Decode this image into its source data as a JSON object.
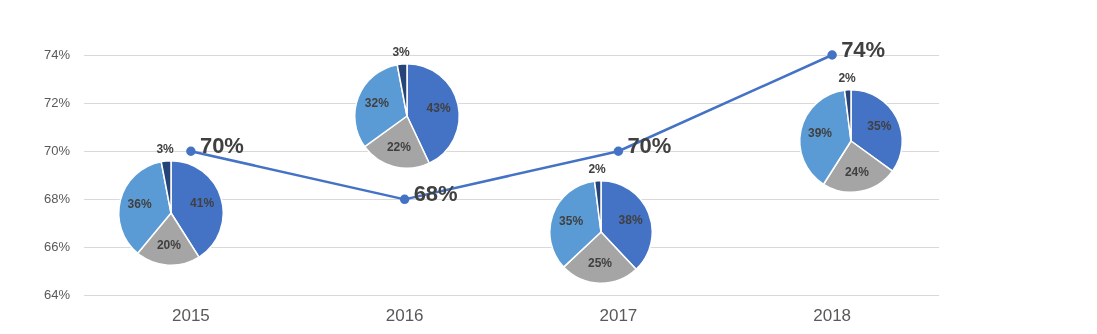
{
  "chart_data": [
    {
      "type": "line",
      "categories": [
        "2015",
        "2016",
        "2017",
        "2018"
      ],
      "values": [
        70,
        68,
        70,
        74
      ],
      "value_labels": [
        "70%",
        "68%",
        "70%",
        "74%"
      ],
      "color": "#4472c4",
      "marker": "circle",
      "ylim": [
        64,
        74
      ],
      "yticks": [
        {
          "value": 64,
          "label": "64%"
        },
        {
          "value": 66,
          "label": "66%"
        },
        {
          "value": 68,
          "label": "68%"
        },
        {
          "value": 70,
          "label": "70%"
        },
        {
          "value": 72,
          "label": "72%"
        },
        {
          "value": 74,
          "label": "74%"
        }
      ],
      "grid": "y",
      "legend": false
    },
    {
      "type": "pie",
      "categories": [
        null,
        null,
        null,
        null
      ],
      "values": [
        41,
        20,
        36,
        3
      ],
      "value_labels": [
        "41%",
        "20%",
        "36%",
        "3%"
      ],
      "colors": [
        "#4472c4",
        "#a5a5a5",
        "#5b9bd5",
        "#264478"
      ]
    },
    {
      "type": "pie",
      "categories": [
        null,
        null,
        null,
        null
      ],
      "values": [
        43,
        22,
        32,
        3
      ],
      "value_labels": [
        "43%",
        "22%",
        "32%",
        "3%"
      ],
      "colors": [
        "#4472c4",
        "#a5a5a5",
        "#5b9bd5",
        "#264478"
      ]
    },
    {
      "type": "pie",
      "categories": [
        null,
        null,
        null,
        null
      ],
      "values": [
        38,
        25,
        35,
        2
      ],
      "value_labels": [
        "38%",
        "25%",
        "35%",
        "2%"
      ],
      "colors": [
        "#4472c4",
        "#a5a5a5",
        "#5b9bd5",
        "#264478"
      ]
    },
    {
      "type": "pie",
      "categories": [
        null,
        null,
        null,
        null
      ],
      "values": [
        35,
        24,
        39,
        2
      ],
      "value_labels": [
        "35%",
        "24%",
        "39%",
        "2%"
      ],
      "colors": [
        "#4472c4",
        "#a5a5a5",
        "#5b9bd5",
        "#264478"
      ]
    }
  ]
}
